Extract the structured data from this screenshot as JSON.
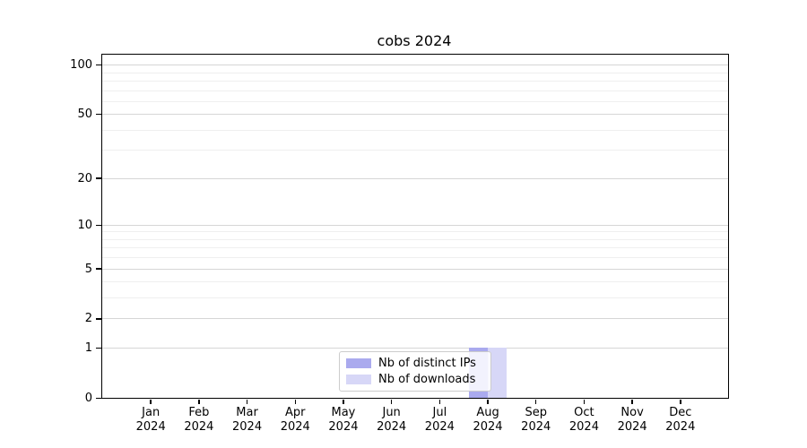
{
  "chart_data": {
    "type": "bar",
    "title": "cobs 2024",
    "xlabel": "",
    "ylabel": "",
    "categories": [
      "Jan 2024",
      "Feb 2024",
      "Mar 2024",
      "Apr 2024",
      "May 2024",
      "Jun 2024",
      "Jul 2024",
      "Aug 2024",
      "Sep 2024",
      "Oct 2024",
      "Nov 2024",
      "Dec 2024"
    ],
    "series": [
      {
        "name": "Nb of distinct IPs",
        "color": "#aaaaee",
        "values": [
          0,
          0,
          0,
          0,
          0,
          0,
          0,
          1,
          0,
          0,
          0,
          0
        ]
      },
      {
        "name": "Nb of downloads",
        "color": "#d7d7f7",
        "values": [
          0,
          0,
          0,
          0,
          0,
          0,
          0,
          1,
          0,
          0,
          0,
          0
        ]
      }
    ],
    "y_scale": "log1p",
    "ylim": [
      0,
      115
    ],
    "y_major_ticks": [
      0,
      1,
      2,
      5,
      10,
      20,
      50,
      100
    ],
    "y_minor_gridlines": [
      3,
      4,
      6,
      7,
      8,
      9,
      30,
      40,
      60,
      70,
      80,
      90
    ],
    "grid": true,
    "legend_position": "lower center"
  },
  "colors": {
    "major_grid": "#d6d6d6",
    "minor_grid": "#efefef",
    "spine": "#000000",
    "legend_border": "#cccccc",
    "text": "#000000"
  }
}
